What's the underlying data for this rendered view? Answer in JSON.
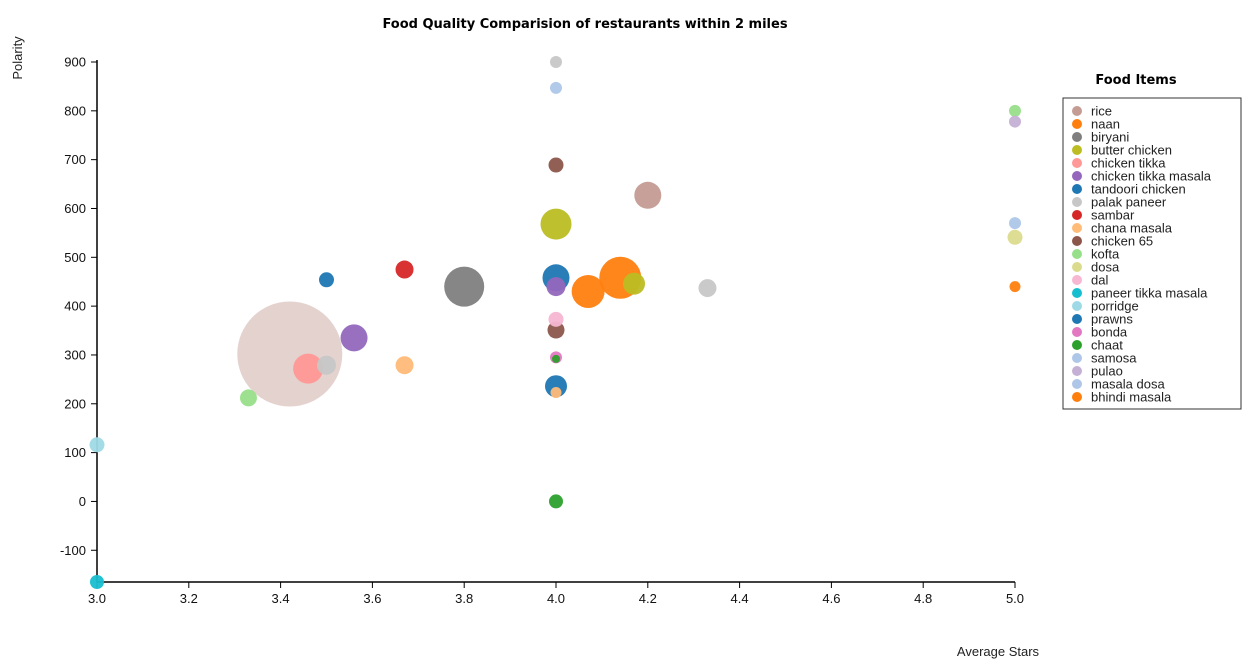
{
  "chart_data": {
    "type": "scatter",
    "title": "Food Quality Comparision of restaurants within 2 miles",
    "xlabel": "Average Stars",
    "ylabel": "Polarity",
    "xlim": [
      3.0,
      5.0
    ],
    "ylim": [
      -165,
      900
    ],
    "xticks": [
      "3.0",
      "3.2",
      "3.4",
      "3.6",
      "3.8",
      "4.0",
      "4.2",
      "4.4",
      "4.6",
      "4.8",
      "5.0"
    ],
    "yticks": [
      "900",
      "800",
      "700",
      "600",
      "500",
      "400",
      "300",
      "200",
      "100",
      "0",
      "-100"
    ],
    "legend_title": "Food Items",
    "legend_position": "right",
    "series": [
      {
        "name": "rice",
        "color": "#c49c94",
        "points": [
          {
            "x": 3.42,
            "y": 302,
            "size": 105
          },
          {
            "x": 4.2,
            "y": 627,
            "size": 27
          }
        ]
      },
      {
        "name": "naan",
        "color": "#ff7f0e",
        "points": [
          {
            "x": 4.14,
            "y": 458,
            "size": 42
          },
          {
            "x": 4.07,
            "y": 430,
            "size": 33
          },
          {
            "x": 5.0,
            "y": 440,
            "size": 11
          }
        ]
      },
      {
        "name": "biryani",
        "color": "#7f7f7f",
        "points": [
          {
            "x": 3.8,
            "y": 440,
            "size": 40
          }
        ]
      },
      {
        "name": "butter chicken",
        "color": "#bcbd22",
        "points": [
          {
            "x": 4.0,
            "y": 568,
            "size": 31
          },
          {
            "x": 4.17,
            "y": 446,
            "size": 22
          }
        ]
      },
      {
        "name": "chicken tikka",
        "color": "#ff9896",
        "points": [
          {
            "x": 3.46,
            "y": 272,
            "size": 30
          }
        ]
      },
      {
        "name": "chicken tikka masala",
        "color": "#9467bd",
        "points": [
          {
            "x": 3.56,
            "y": 335,
            "size": 27
          },
          {
            "x": 4.0,
            "y": 440,
            "size": 19
          }
        ]
      },
      {
        "name": "tandoori chicken",
        "color": "#1f77b4",
        "points": [
          {
            "x": 3.5,
            "y": 454,
            "size": 15
          },
          {
            "x": 4.0,
            "y": 458,
            "size": 27
          },
          {
            "x": 4.0,
            "y": 236,
            "size": 22
          }
        ]
      },
      {
        "name": "palak paneer",
        "color": "#c7c7c7",
        "points": [
          {
            "x": 4.0,
            "y": 900,
            "size": 12
          },
          {
            "x": 4.33,
            "y": 437,
            "size": 18
          },
          {
            "x": 3.5,
            "y": 279,
            "size": 19
          }
        ]
      },
      {
        "name": "sambar",
        "color": "#d62728",
        "points": [
          {
            "x": 3.67,
            "y": 475,
            "size": 18
          }
        ]
      },
      {
        "name": "chana masala",
        "color": "#ffbb78",
        "points": [
          {
            "x": 3.67,
            "y": 279,
            "size": 18
          },
          {
            "x": 4.0,
            "y": 223,
            "size": 11
          }
        ]
      },
      {
        "name": "chicken 65",
        "color": "#8c564b",
        "points": [
          {
            "x": 4.0,
            "y": 689,
            "size": 15
          },
          {
            "x": 4.0,
            "y": 351,
            "size": 17
          }
        ]
      },
      {
        "name": "kofta",
        "color": "#98df8a",
        "points": [
          {
            "x": 3.33,
            "y": 212,
            "size": 17
          },
          {
            "x": 5.0,
            "y": 800,
            "size": 12
          }
        ]
      },
      {
        "name": "dosa",
        "color": "#dbdb8d",
        "points": [
          {
            "x": 5.0,
            "y": 541,
            "size": 15
          }
        ]
      },
      {
        "name": "dal",
        "color": "#f7b6d2",
        "points": [
          {
            "x": 4.0,
            "y": 373,
            "size": 15
          }
        ]
      },
      {
        "name": "paneer tikka masala",
        "color": "#17becf",
        "points": [
          {
            "x": 3.0,
            "y": -165,
            "size": 14
          }
        ]
      },
      {
        "name": "porridge",
        "color": "#9edae5",
        "points": [
          {
            "x": 3.0,
            "y": 116,
            "size": 15
          }
        ]
      },
      {
        "name": "prawns",
        "color": "#1f77b4",
        "points": []
      },
      {
        "name": "bonda",
        "color": "#e377c2",
        "points": [
          {
            "x": 4.0,
            "y": 295,
            "size": 12
          }
        ]
      },
      {
        "name": "chaat",
        "color": "#2ca02c",
        "points": [
          {
            "x": 4.0,
            "y": 0,
            "size": 14
          },
          {
            "x": 4.0,
            "y": 292,
            "size": 8
          }
        ]
      },
      {
        "name": "samosa",
        "color": "#aec7e8",
        "points": []
      },
      {
        "name": "pulao",
        "color": "#c5b0d5",
        "points": [
          {
            "x": 5.0,
            "y": 778,
            "size": 12
          }
        ]
      },
      {
        "name": "masala dosa",
        "color": "#aec7e8",
        "points": [
          {
            "x": 4.0,
            "y": 847,
            "size": 12
          },
          {
            "x": 5.0,
            "y": 570,
            "size": 12
          }
        ]
      },
      {
        "name": "bhindi masala",
        "color": "#ff7f0e",
        "points": []
      }
    ]
  }
}
